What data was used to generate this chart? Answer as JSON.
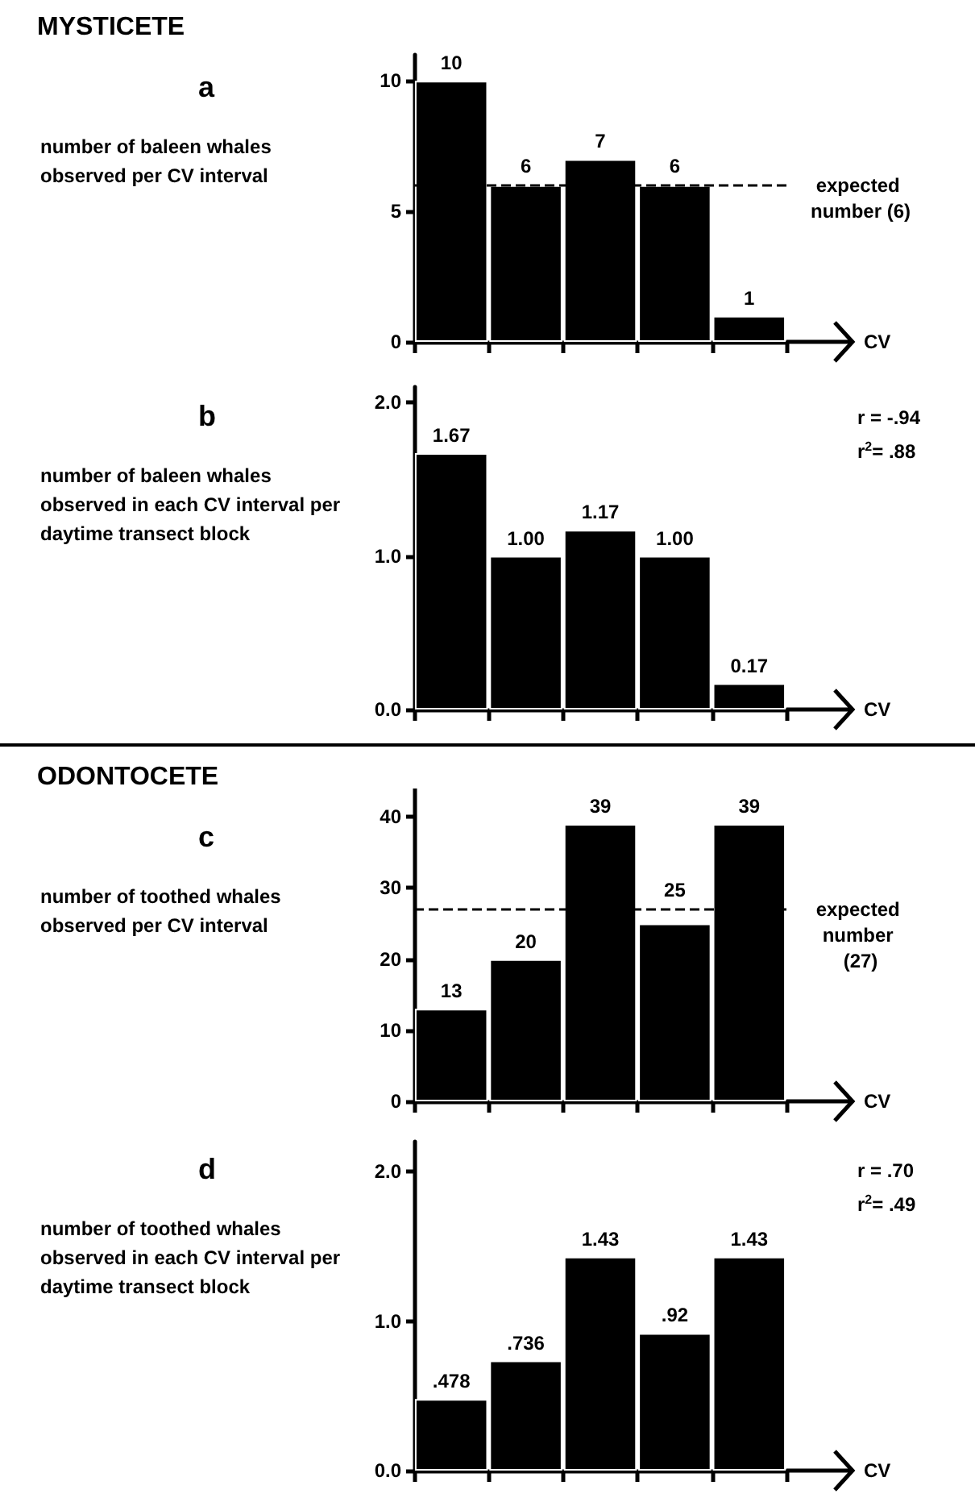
{
  "chart_data": [
    {
      "type": "other",
      "title": "MYSTICETE"
    },
    {
      "type": "bar",
      "title": "a",
      "ylabel": "number of baleen whales observed per CV interval",
      "xlabel": "CV",
      "categories": [
        null,
        null,
        null,
        null,
        null
      ],
      "values": [
        10,
        6,
        7,
        6,
        1
      ],
      "color": "#000000",
      "data_labels": true,
      "ylim": [
        0,
        11
      ],
      "yticks": [
        0,
        5,
        10
      ],
      "tick_labels": "y",
      "ref_lines": [
        {
          "axis": "y",
          "value": 6,
          "label": "expected number (6)",
          "line_style": "dashed",
          "color": "#000000"
        }
      ]
    },
    {
      "type": "bar",
      "title": "b",
      "ylabel": "number of baleen whales observed in each CV interval per daytime transect block",
      "xlabel": "CV",
      "categories": [
        null,
        null,
        null,
        null,
        null
      ],
      "values": [
        1.67,
        1.0,
        1.17,
        1.0,
        0.17
      ],
      "value_labels": [
        "1.67",
        "1.00",
        "1.17",
        "1.00",
        "0.17"
      ],
      "color": "#000000",
      "ylim": [
        0,
        2.1
      ],
      "yticks": [
        {
          "value": 0,
          "label": "0.0"
        },
        {
          "value": 1,
          "label": "1.0"
        },
        {
          "value": 2,
          "label": "2.0"
        }
      ],
      "tick_labels": "y",
      "annotations": [
        "r = -.94",
        "r$^{2}$= .88"
      ]
    },
    {
      "type": "other",
      "title": "ODONTOCETE"
    },
    {
      "type": "bar",
      "title": "c",
      "ylabel": "number of toothed whales observed per CV interval",
      "xlabel": "CV",
      "categories": [
        null,
        null,
        null,
        null,
        null
      ],
      "values": [
        13,
        20,
        39,
        25,
        39
      ],
      "color": "#000000",
      "data_labels": true,
      "ylim": [
        0,
        44
      ],
      "yticks": [
        0,
        10,
        20,
        30,
        40
      ],
      "tick_labels": "y",
      "ref_lines": [
        {
          "axis": "y",
          "value": 27,
          "label": "expected number (27)",
          "line_style": "dashed",
          "color": "#000000"
        }
      ]
    },
    {
      "type": "bar",
      "title": "d",
      "ylabel": "number of toothed whales observed in each CV interval per daytime transect block",
      "xlabel": "CV",
      "categories": [
        null,
        null,
        null,
        null,
        null
      ],
      "values": [
        0.478,
        0.736,
        1.43,
        0.92,
        1.43
      ],
      "value_labels": [
        ".478",
        ".736",
        "1.43",
        ".92",
        "1.43"
      ],
      "color": "#000000",
      "ylim": [
        0,
        2.2
      ],
      "yticks": [
        {
          "value": 0,
          "label": "0.0"
        },
        {
          "value": 1,
          "label": "1.0"
        },
        {
          "value": 2,
          "label": "2.0"
        }
      ],
      "tick_labels": "y",
      "annotations": [
        "r = .70",
        "r$^{2}$= .49"
      ]
    }
  ]
}
